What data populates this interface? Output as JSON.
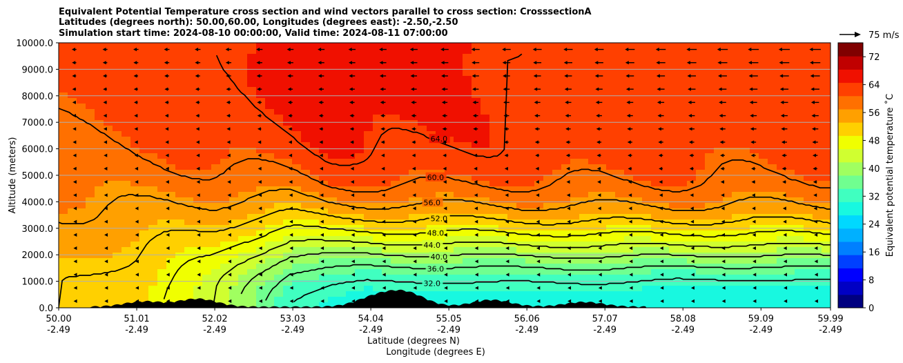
{
  "chart_data": {
    "type": "heatmap",
    "title_lines": [
      "Equivalent Potential Temperature cross section and wind vectors parallel to cross section: CrosssectionA",
      "Latitudes (degrees north): 50.00,60.00, Longitudes (degrees east): -2.50,-2.50",
      "Simulation start time: 2024-08-10 00:00:00, Valid time: 2024-08-11 07:00:00"
    ],
    "ylabel": "Altitude (meters)",
    "xlabel_lines": [
      "Latitude (degrees N)",
      "Longitude (degrees E)"
    ],
    "ylim": [
      0,
      10000
    ],
    "xlim": [
      50.0,
      59.99
    ],
    "y_ticks": [
      "0.0",
      "1000.0",
      "2000.0",
      "3000.0",
      "4000.0",
      "5000.0",
      "6000.0",
      "7000.0",
      "8000.0",
      "9000.0",
      "10000.0"
    ],
    "x_ticks": [
      {
        "lat": "50.00",
        "lon": "-2.49"
      },
      {
        "lat": "51.01",
        "lon": "-2.49"
      },
      {
        "lat": "52.02",
        "lon": "-2.49"
      },
      {
        "lat": "53.03",
        "lon": "-2.49"
      },
      {
        "lat": "54.04",
        "lon": "-2.49"
      },
      {
        "lat": "55.05",
        "lon": "-2.49"
      },
      {
        "lat": "56.06",
        "lon": "-2.49"
      },
      {
        "lat": "57.07",
        "lon": "-2.49"
      },
      {
        "lat": "58.08",
        "lon": "-2.49"
      },
      {
        "lat": "59.09",
        "lon": "-2.49"
      },
      {
        "lat": "59.99",
        "lon": "-2.49"
      }
    ],
    "grid": "horizontal",
    "colorbar": {
      "label": "Equivalent potential temperature $^\\circ$C",
      "label_display": "Equivalent potential temperature ˚C",
      "range": [
        0,
        76
      ],
      "ticks": [
        "0",
        "8",
        "16",
        "24",
        "32",
        "40",
        "48",
        "56",
        "64",
        "72"
      ],
      "colors": [
        "#000080",
        "#0000c4",
        "#0000ff",
        "#0040ff",
        "#0080ff",
        "#00b0ff",
        "#00d8ff",
        "#18f8e0",
        "#40ffc0",
        "#70ff90",
        "#a0ff60",
        "#d0ff30",
        "#f0ff00",
        "#ffd000",
        "#ffa000",
        "#ff7000",
        "#ff4000",
        "#f01000",
        "#c00000",
        "#800000"
      ]
    },
    "quiver_key": {
      "label": "75 m/s"
    },
    "contour_levels": [
      "32.0",
      "36.0",
      "40.0",
      "44.0",
      "48.0",
      "52.0",
      "56.0",
      "60.0",
      "64.0"
    ],
    "field_profiles": {
      "lat": [
        50.0,
        51.0,
        52.0,
        53.0,
        53.5,
        54.0,
        55.0,
        56.0,
        57.0,
        58.0,
        59.0,
        59.99
      ],
      "theta_surface": [
        52,
        50,
        44,
        32,
        30,
        29,
        29,
        29,
        29,
        28,
        28,
        28
      ],
      "theta_top": [
        62,
        63,
        64,
        65,
        66,
        66,
        65,
        64,
        63,
        63,
        62,
        62
      ],
      "z_mix_m": [
        6500,
        6000,
        5200,
        4700,
        4400,
        4300,
        4200,
        4000,
        3900,
        3800,
        3800,
        3700
      ]
    },
    "terrain_peaks_lat": [
      51.1,
      51.8,
      54.1,
      54.5,
      55.6,
      56.8
    ],
    "terrain_peaks_height_m": [
      200,
      300,
      350,
      500,
      260,
      180
    ]
  }
}
